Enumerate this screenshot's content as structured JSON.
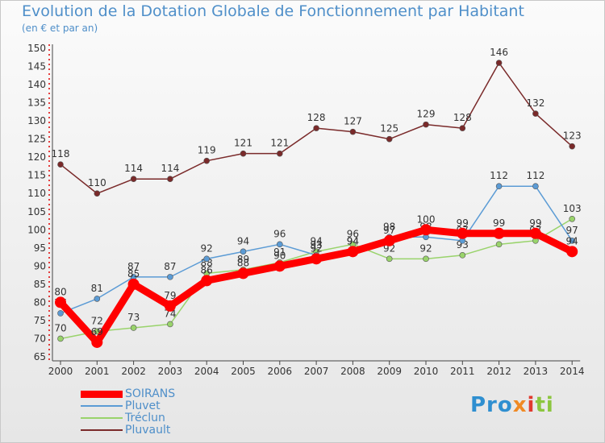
{
  "chart_data": {
    "type": "line",
    "title": "Evolution de la Dotation Globale de Fonctionnement par Habitant",
    "subtitle": "(en € et par an)",
    "categories": [
      "2000",
      "2001",
      "2002",
      "2003",
      "2004",
      "2005",
      "2006",
      "2007",
      "2008",
      "2009",
      "2010",
      "2011",
      "2012",
      "2013",
      "2014"
    ],
    "ylim": [
      65,
      150
    ],
    "yticks": [
      65,
      70,
      75,
      80,
      85,
      90,
      95,
      100,
      105,
      110,
      115,
      120,
      125,
      130,
      135,
      140,
      145,
      150
    ],
    "grid": false,
    "legend_position": "bottom-left",
    "series": [
      {
        "name": "SOIRANS",
        "color": "#ff0000",
        "values": [
          80,
          69,
          85,
          79,
          86,
          88,
          90,
          92,
          94,
          97,
          100,
          99,
          99,
          99,
          94
        ]
      },
      {
        "name": "Pluvet",
        "color": "#5b9bd5",
        "values": [
          77,
          81,
          87,
          87,
          92,
          94,
          96,
          93,
          94,
          98,
          98,
          97,
          112,
          112,
          97
        ]
      },
      {
        "name": "Tréclun",
        "color": "#99d36b",
        "values": [
          70,
          72,
          73,
          74,
          88,
          89,
          91,
          94,
          96,
          92,
          92,
          93,
          96,
          97,
          103
        ]
      },
      {
        "name": "Pluvault",
        "color": "#7a2a2a",
        "values": [
          118,
          110,
          114,
          114,
          119,
          121,
          121,
          128,
          127,
          125,
          129,
          128,
          146,
          132,
          123
        ]
      }
    ]
  },
  "logo": {
    "p1": "Pro",
    "p2": "x",
    "p3": "i",
    "p4": "ti"
  }
}
